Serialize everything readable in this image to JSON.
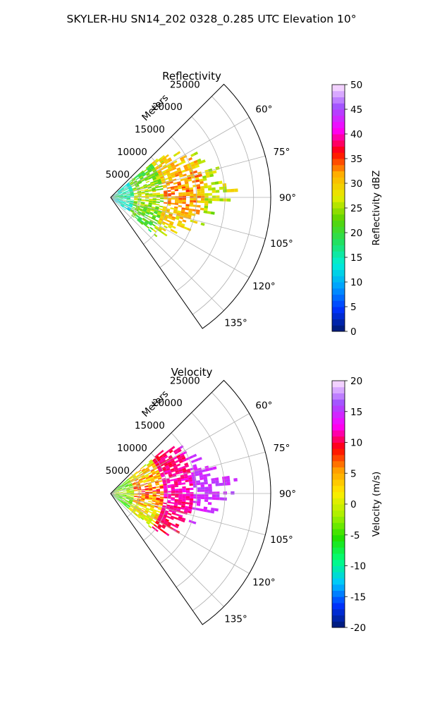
{
  "figure": {
    "suptitle": "SKYLER-HU  SN14_202  0328_0.285 UTC Elevation 10°"
  },
  "chart_data": [
    {
      "type": "heatmap",
      "projection": "polar sector (PPI)",
      "title": "Reflectivity",
      "range_label": "Meters",
      "range_ticks": [
        "5000",
        "10000",
        "15000",
        "20000",
        "25000"
      ],
      "range_tick_values": [
        5000,
        10000,
        15000,
        20000,
        25000
      ],
      "range_max": 28000,
      "azimuth_ticks": [
        "60°",
        "75°",
        "90°",
        "105°",
        "120°",
        "135°"
      ],
      "azimuth_tick_values": [
        60,
        75,
        90,
        105,
        120,
        135
      ],
      "azimuth_range": [
        45,
        145
      ],
      "grid": true,
      "colorbar": {
        "label": "Reflectivity dBZ",
        "ticks": [
          "0",
          "5",
          "10",
          "15",
          "20",
          "25",
          "30",
          "35",
          "40",
          "45",
          "50"
        ],
        "tick_values": [
          0,
          5,
          10,
          15,
          20,
          25,
          30,
          35,
          40,
          45,
          50
        ],
        "range": [
          0,
          50
        ],
        "colors": [
          "#001a6e",
          "#0033ff",
          "#00a0ff",
          "#00f0d8",
          "#22e060",
          "#5bd400",
          "#e8ee00",
          "#ffb000",
          "#ff0000",
          "#ff00ff",
          "#a050ff",
          "#ffe6ff"
        ]
      },
      "echo_region": {
        "azimuth_range": [
          50,
          130
        ],
        "max_range": 20000,
        "value_ranges_dbz": [
          {
            "range": [
              0,
              3500
            ],
            "values": [
              8,
              20
            ]
          },
          {
            "range": [
              3500,
              9000
            ],
            "values": [
              15,
              30
            ]
          },
          {
            "range": [
              9000,
              16000
            ],
            "values": [
              22,
              36
            ]
          },
          {
            "range": [
              16000,
              20000
            ],
            "values": [
              18,
              30
            ]
          }
        ]
      }
    },
    {
      "type": "heatmap",
      "projection": "polar sector (PPI)",
      "title": "Velocity",
      "range_label": "Meters",
      "range_ticks": [
        "5000",
        "10000",
        "15000",
        "20000",
        "25000"
      ],
      "range_tick_values": [
        5000,
        10000,
        15000,
        20000,
        25000
      ],
      "range_max": 28000,
      "azimuth_ticks": [
        "60°",
        "75°",
        "90°",
        "105°",
        "120°",
        "135°"
      ],
      "azimuth_tick_values": [
        60,
        75,
        90,
        105,
        120,
        135
      ],
      "azimuth_range": [
        45,
        145
      ],
      "grid": true,
      "colorbar": {
        "label": "Velocity (m/s)",
        "ticks": [
          "-20",
          "-15",
          "-10",
          "-5",
          "0",
          "5",
          "10",
          "15",
          "20"
        ],
        "tick_values": [
          -20,
          -15,
          -10,
          -5,
          0,
          5,
          10,
          15,
          20
        ],
        "range": [
          -20,
          20
        ],
        "colors": [
          "#001a6e",
          "#0033ff",
          "#00c8ff",
          "#00ff80",
          "#22e000",
          "#a8f000",
          "#ffee00",
          "#ffa000",
          "#ff0000",
          "#ff00ff",
          "#a050ff",
          "#ffe6ff"
        ]
      },
      "echo_region": {
        "azimuth_range": [
          50,
          130
        ],
        "max_range": 20000,
        "value_ranges_ms": [
          {
            "range": [
              0,
              3500
            ],
            "values": [
              -10,
              2
            ]
          },
          {
            "range": [
              3500,
              9000
            ],
            "values": [
              -5,
              11
            ]
          },
          {
            "range": [
              9000,
              14000
            ],
            "values": [
              8,
              13
            ]
          },
          {
            "range": [
              14000,
              20000
            ],
            "values": [
              12,
              16
            ]
          }
        ]
      }
    }
  ]
}
